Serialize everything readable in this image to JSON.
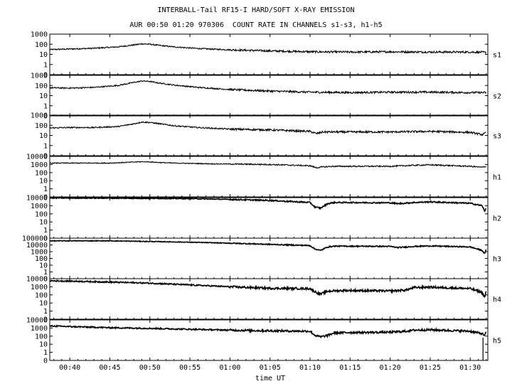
{
  "header": {
    "title": "INTERBALL-Tail RF15-I HARD/SOFT X-RAY EMISSION",
    "subtitle": "AUR 00:50 01:20 970306  COUNT RATE IN CHANNELS s1-s3, h1-h5"
  },
  "chart_data": {
    "type": "line",
    "title": "INTERBALL-Tail RF15-I HARD/SOFT X-RAY EMISSION",
    "subtitle": "AUR 00:50 01:20 970306  COUNT RATE IN CHANNELS s1-s3, h1-h5",
    "xlabel": "time UT",
    "x_ticks": [
      "00:40",
      "00:45",
      "00:50",
      "00:55",
      "01:00",
      "01:05",
      "01:10",
      "01:15",
      "01:20",
      "01:25",
      "01:30"
    ],
    "x_tick_minutes": [
      40,
      45,
      50,
      55,
      60,
      65,
      70,
      75,
      80,
      85,
      90
    ],
    "xlim_minutes": [
      37.5,
      92.2
    ],
    "yscale": "log",
    "grid": false,
    "series": [
      {
        "name": "s1",
        "y_ticks": [
          "1000",
          "100",
          "10",
          "1",
          "0"
        ],
        "ylim_decades": [
          -1,
          3
        ],
        "x": [
          37.5,
          40,
          43,
          46,
          48,
          49,
          50,
          51,
          53,
          56,
          60,
          65,
          70,
          75,
          80,
          85,
          90,
          92
        ],
        "y": [
          30,
          34,
          40,
          55,
          85,
          110,
          100,
          80,
          55,
          38,
          28,
          22,
          18,
          17,
          18,
          17,
          17,
          16
        ]
      },
      {
        "name": "s2",
        "y_ticks": [
          "1000",
          "100",
          "10",
          "1",
          "0"
        ],
        "ylim_decades": [
          -1,
          3
        ],
        "x": [
          37.5,
          40,
          43,
          46,
          48,
          49,
          50,
          51,
          53,
          56,
          60,
          65,
          70,
          75,
          80,
          85,
          90,
          92
        ],
        "y": [
          60,
          55,
          65,
          100,
          200,
          280,
          250,
          180,
          110,
          65,
          40,
          28,
          22,
          20,
          22,
          22,
          20,
          20
        ]
      },
      {
        "name": "s3",
        "y_ticks": [
          "1000",
          "100",
          "10",
          "1",
          "0"
        ],
        "ylim_decades": [
          -1,
          3
        ],
        "x": [
          37.5,
          40,
          43,
          46,
          48,
          49,
          50,
          51,
          53,
          56,
          60,
          65,
          70,
          70.8,
          71.6,
          72.5,
          75,
          80,
          85,
          90,
          91.5,
          92
        ],
        "y": [
          55,
          60,
          60,
          75,
          140,
          210,
          190,
          150,
          90,
          60,
          42,
          35,
          25,
          15,
          22,
          22,
          22,
          22,
          25,
          20,
          12,
          18
        ]
      },
      {
        "name": "h1",
        "y_ticks": [
          "10000",
          "1000",
          "100",
          "10",
          "1",
          "0"
        ],
        "ylim_decades": [
          -1,
          4
        ],
        "x": [
          37.5,
          40,
          45,
          48,
          49,
          50,
          51,
          53,
          58,
          65,
          70,
          70.8,
          71.6,
          73,
          80,
          83,
          85,
          90,
          91.5,
          92
        ],
        "y": [
          1500,
          1500,
          1500,
          2000,
          2200,
          2100,
          1800,
          1500,
          1200,
          1000,
          700,
          400,
          500,
          600,
          600,
          800,
          900,
          600,
          450,
          600
        ]
      },
      {
        "name": "h2",
        "y_ticks": [
          "10000",
          "1000",
          "100",
          "10",
          "1",
          "0"
        ],
        "ylim_decades": [
          -1,
          4
        ],
        "x": [
          37.5,
          45,
          55,
          60,
          65,
          70,
          70.6,
          71.3,
          72.2,
          73,
          75,
          80,
          81,
          83,
          85,
          90,
          91.5,
          91.8,
          92
        ],
        "y": [
          9000,
          8500,
          7500,
          6000,
          4500,
          2500,
          700,
          500,
          1800,
          2500,
          2500,
          2300,
          1800,
          2500,
          3000,
          2000,
          1000,
          200,
          600
        ]
      },
      {
        "name": "h3",
        "y_ticks": [
          "100000",
          "10000",
          "1000",
          "100",
          "10",
          "1",
          "0"
        ],
        "ylim_decades": [
          -1,
          5
        ],
        "x": [
          37.5,
          45,
          50,
          55,
          60,
          65,
          70,
          70.6,
          71.3,
          72.2,
          73,
          75,
          80,
          81,
          83,
          85,
          90,
          91.5,
          91.8,
          92
        ],
        "y": [
          40000,
          40000,
          32000,
          25000,
          18000,
          12000,
          8000,
          2500,
          1500,
          5000,
          6500,
          6500,
          6000,
          4000,
          6000,
          7000,
          5000,
          1500,
          500,
          2000
        ]
      },
      {
        "name": "h4",
        "y_ticks": [
          "10000",
          "1000",
          "100",
          "10",
          "1",
          "0"
        ],
        "ylim_decades": [
          -1,
          4
        ],
        "x": [
          37.5,
          40,
          45,
          50,
          55,
          60,
          65,
          70,
          70.6,
          71.3,
          72.2,
          73,
          75,
          80,
          82,
          83,
          85,
          90,
          91.5,
          91.8,
          92
        ],
        "y": [
          5500,
          5000,
          3800,
          2800,
          1700,
          1000,
          650,
          600,
          250,
          120,
          280,
          320,
          350,
          300,
          400,
          800,
          900,
          600,
          200,
          50,
          300
        ]
      },
      {
        "name": "h5",
        "y_ticks": [
          "10000",
          "1000",
          "100",
          "10",
          "1",
          "0"
        ],
        "ylim_decades": [
          -1,
          4
        ],
        "x": [
          37.5,
          40,
          45,
          50,
          55,
          60,
          65,
          70,
          70.6,
          71.3,
          72.2,
          73,
          75,
          80,
          82,
          83,
          85,
          90,
          91.5,
          91.8,
          92
        ],
        "y": [
          1800,
          1500,
          1100,
          900,
          700,
          550,
          450,
          400,
          130,
          80,
          120,
          250,
          280,
          300,
          400,
          550,
          600,
          400,
          200,
          120,
          300
        ]
      }
    ]
  }
}
